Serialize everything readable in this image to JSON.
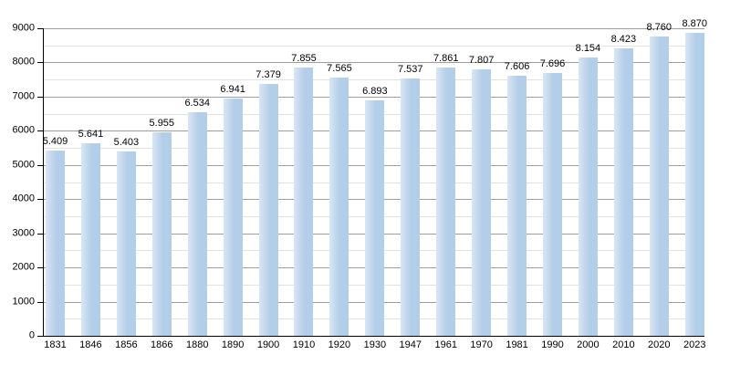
{
  "chart_data": {
    "type": "bar",
    "categories": [
      "1831",
      "1846",
      "1856",
      "1866",
      "1880",
      "1890",
      "1900",
      "1910",
      "1920",
      "1930",
      "1947",
      "1961",
      "1970",
      "1981",
      "1990",
      "2000",
      "2010",
      "2020",
      "2023"
    ],
    "values": [
      5409,
      5641,
      5403,
      5955,
      6534,
      6941,
      7379,
      7855,
      7565,
      6893,
      7537,
      7861,
      7807,
      7606,
      7696,
      8154,
      8423,
      8760,
      8870
    ],
    "value_labels": [
      "5.409",
      "5.641",
      "5.403",
      "5.955",
      "6.534",
      "6.941",
      "7.379",
      "7.855",
      "7.565",
      "6.893",
      "7.537",
      "7.861",
      "7.807",
      "7.606",
      "7.696",
      "8.154",
      "8.423",
      "8.760",
      "8.870"
    ],
    "y_tick_labels": [
      "0",
      "1000",
      "2000",
      "3000",
      "4000",
      "5000",
      "6000",
      "7000",
      "8000",
      "9000"
    ],
    "ylim": [
      0,
      9000
    ],
    "y_major_step": 1000,
    "y_minor_step": 500,
    "grid": "on",
    "legend": "none",
    "colors": {
      "bar_fill": "#b3cee8",
      "bar_fill_light_edge": "#d9e6f4",
      "major_gridline": "#9e9e9e",
      "minor_gridline": "#e2e2e2",
      "axis_line": "#000000",
      "label_text": "#000000",
      "background": "#ffffff"
    }
  }
}
